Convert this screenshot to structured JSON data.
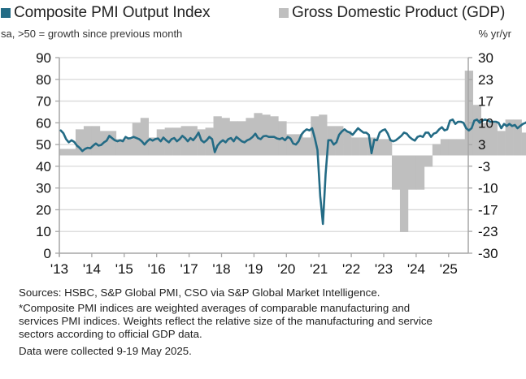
{
  "chart_data": {
    "type": "bar+line",
    "title": "",
    "legend": [
      {
        "name": "Composite PMI Output Index",
        "color": "#236b85",
        "note": "sa, >50 = growth since previous month"
      },
      {
        "name": "Gross Domestic Product (GDP)",
        "color": "#bfbfbf",
        "note": "% yr/yr"
      }
    ],
    "legend_placement": "top",
    "left_axis": {
      "ylim": [
        0,
        90
      ],
      "ticks": [
        "90",
        "80",
        "70",
        "60",
        "50",
        "40",
        "30",
        "20",
        "10",
        "0"
      ],
      "tick_values": [
        90,
        80,
        70,
        60,
        50,
        40,
        30,
        20,
        10,
        0
      ]
    },
    "right_axis": {
      "ylim": [
        -30,
        30
      ],
      "ticks": [
        "30",
        "23",
        "17",
        "10",
        "3",
        "-3",
        "-10",
        "-17",
        "-23",
        "-30"
      ],
      "tick_values": [
        30,
        23.3,
        16.7,
        10,
        3.3,
        -3.3,
        -10,
        -16.7,
        -23.3,
        -30
      ]
    },
    "x_ticks": [
      "'13",
      "'14",
      "'15",
      "'16",
      "'17",
      "'18",
      "'19",
      "'20",
      "'21",
      "'22",
      "'23",
      "'24",
      "'25"
    ],
    "x_start_year": 2013,
    "grid": true,
    "series": [
      {
        "name": "Composite PMI Output Index",
        "type": "line",
        "axis": "left",
        "frequency": "monthly",
        "start": "2013-01",
        "values": [
          56.5,
          55.2,
          52.5,
          51.0,
          52.0,
          51.2,
          49.5,
          48.5,
          47.0,
          48.0,
          48.5,
          48.3,
          49.5,
          50.5,
          49.5,
          49.8,
          51.0,
          51.8,
          54.0,
          53.0,
          52.0,
          51.5,
          52.0,
          51.5,
          53.5,
          52.8,
          53.0,
          53.5,
          53.0,
          52.5,
          51.5,
          50.0,
          51.5,
          52.5,
          51.8,
          52.5,
          52.8,
          51.5,
          53.2,
          52.0,
          51.0,
          52.5,
          53.0,
          51.5,
          52.5,
          54.0,
          53.0,
          51.5,
          53.0,
          52.0,
          53.5,
          55.5,
          52.0,
          51.0,
          52.0,
          53.5,
          52.5,
          46.5,
          49.5,
          51.0,
          52.0,
          51.0,
          52.5,
          53.0,
          51.5,
          53.5,
          52.5,
          51.5,
          51.0,
          52.0,
          52.5,
          53.5,
          55.0,
          53.0,
          52.5,
          53.8,
          54.0,
          53.5,
          53.5,
          53.5,
          52.8,
          52.5,
          53.0,
          52.0,
          53.5,
          52.8,
          50.5,
          50.0,
          51.5,
          54.5,
          56.0,
          57.0,
          56.5,
          57.5,
          53.0,
          47.5,
          26.3,
          13.5,
          36.3,
          52.0,
          52.0,
          50.0,
          51.0,
          54.5,
          56.0,
          57.0,
          56.0,
          55.5,
          54.5,
          56.0,
          57.5,
          56.5,
          55.5,
          55.5,
          54.5,
          46.0,
          52.3,
          52.0,
          55.5,
          56.5,
          57.0,
          55.0,
          52.0,
          51.5,
          52.0,
          53.0,
          54.0,
          55.5,
          55.0,
          53.5,
          52.5,
          51.8,
          53.5,
          54.0,
          53.5,
          55.5,
          55.5,
          53.5,
          55.0,
          55.5,
          57.0,
          58.0,
          56.5,
          57.0,
          61.0,
          61.5,
          59.5,
          60.5,
          60.5,
          60.0,
          57.5,
          56.5,
          57.5,
          61.0,
          61.5,
          60.0,
          61.0,
          61.5,
          61.0,
          60.5,
          60.5,
          60.5,
          60.0,
          57.5,
          59.5,
          58.5,
          59.5,
          58.5,
          59.0,
          57.5,
          58.5,
          59.5,
          60.0,
          61.0
        ]
      },
      {
        "name": "Gross Domestic Product (GDP)",
        "type": "bar",
        "axis": "right",
        "frequency": "quarterly",
        "start": "2013-Q1",
        "values": [
          2.0,
          2.0,
          8.0,
          9.0,
          9.0,
          7.5,
          7.5,
          5.0,
          5.0,
          10.0,
          11.5,
          5.5,
          8.0,
          8.5,
          8.5,
          9.0,
          9.0,
          8.0,
          8.5,
          12.0,
          11.5,
          10.5,
          10.5,
          11.5,
          13.0,
          12.5,
          12.0,
          10.5,
          6.5,
          6.5,
          5.5,
          12.0,
          12.5,
          9.0,
          9.0,
          7.5,
          5.5,
          5.5,
          5.5,
          5.0,
          5.0,
          -10.5,
          -23.5,
          -10.5,
          -10.5,
          -3.5,
          3.5,
          5.0,
          5.0,
          5.0,
          26.0,
          15.5,
          10.0,
          10.0,
          7.5,
          11.0,
          11.0,
          7.0,
          6.5,
          18.0,
          18.0,
          7.5,
          7.5,
          6.0,
          6.0,
          9.0,
          9.0,
          12.0,
          12.0,
          12.5,
          12.5,
          11.5,
          11.5,
          8.0,
          8.0,
          5.0,
          5.0,
          3.5,
          3.5,
          4.5,
          4.5
        ]
      }
    ]
  },
  "legend": {
    "pmi_label": "Composite PMI Output Index",
    "pmi_note": "sa, >50 = growth since previous month",
    "gdp_label": "Gross Domestic Product (GDP)",
    "gdp_note": "% yr/yr"
  },
  "footer": {
    "sources": "Sources: HSBC, S&P Global PMI, CSO via S&P Global Market Intelligence.",
    "note_line1": "*Composite PMI indices are weighted averages of comparable manufacturing and",
    "note_line2": "services PMI indices. Weights reflect the relative size of the manufacturing and service",
    "note_line3": "sectors according to official GDP data.",
    "collected": "Data were collected 9-19 May 2025."
  },
  "colors": {
    "pmi_line": "#236b85",
    "gdp_bar": "#bfbfbf",
    "grid": "#d9d9d9",
    "axis": "#a6a6a6"
  }
}
